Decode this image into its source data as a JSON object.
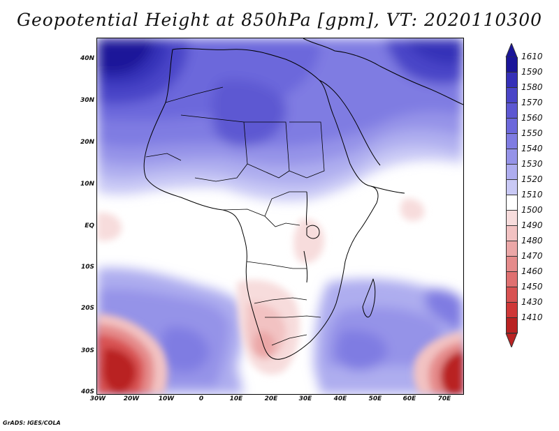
{
  "title": "Geopotential Height at 850hPa [gpm], VT: 2020110300",
  "footer": "GrADS: IGES/COLA",
  "map": {
    "region": "Africa",
    "variable": "Geopotential Height at 850hPa",
    "units": "gpm",
    "lat_labels": [
      "40N",
      "30N",
      "20N",
      "10N",
      "EQ",
      "10S",
      "20S",
      "30S",
      "40S"
    ],
    "lon_labels": [
      "30W",
      "20W",
      "10W",
      "0",
      "10E",
      "20E",
      "30E",
      "40E",
      "50E",
      "60E",
      "70E"
    ]
  },
  "colorbar": {
    "levels": [
      "1610",
      "1590",
      "1580",
      "1570",
      "1560",
      "1550",
      "1540",
      "1530",
      "1520",
      "1510",
      "1500",
      "1490",
      "1480",
      "1470",
      "1460",
      "1450",
      "1430",
      "1410"
    ],
    "colors": [
      "#1a1599",
      "#3530b8",
      "#4a45c7",
      "#5d58d2",
      "#6c68db",
      "#7f7ce2",
      "#9593e8",
      "#aeadef",
      "#c9c9f5",
      "#ffffff",
      "#f7dcdc",
      "#f2c2c2",
      "#eba7a7",
      "#e58b8b",
      "#df7070",
      "#d85252",
      "#cf3838",
      "#b92222"
    ],
    "top_arrow_color": "#1a1599",
    "bottom_arrow_color": "#b92222"
  }
}
